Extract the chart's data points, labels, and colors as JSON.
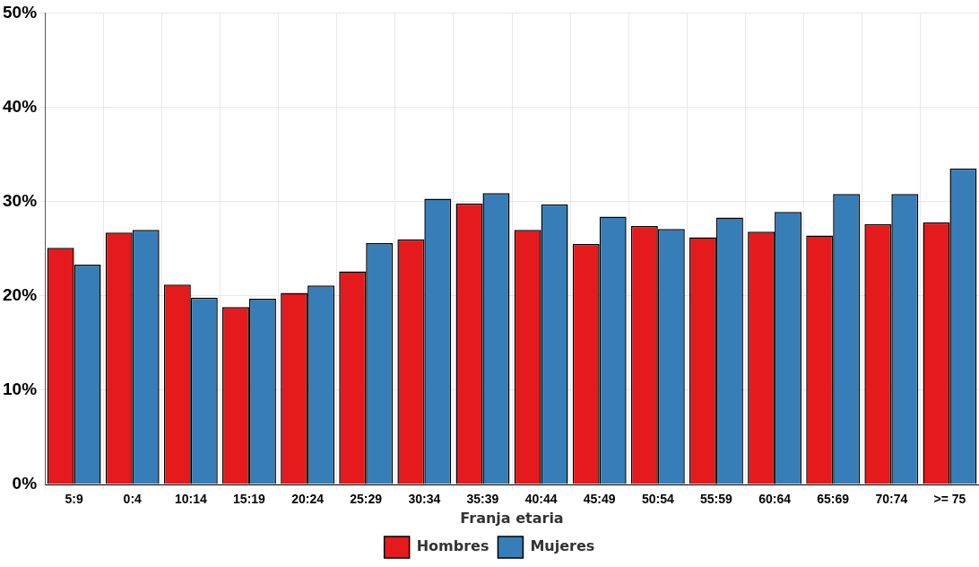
{
  "chart_data": {
    "type": "bar",
    "xlabel": "Franja etaria",
    "categories": [
      "5:9",
      "0:4",
      "10:14",
      "15:19",
      "20:24",
      "25:29",
      "30:34",
      "35:39",
      "40:44",
      "45:49",
      "50:54",
      "55:59",
      "60:64",
      "65:69",
      "70:74",
      ">= 75"
    ],
    "series": [
      {
        "name": "Hombres",
        "color": "#e41a1c",
        "values": [
          25.1,
          26.7,
          21.2,
          18.8,
          20.3,
          22.6,
          26.0,
          29.8,
          27.0,
          25.5,
          27.4,
          26.2,
          26.8,
          26.4,
          27.6,
          27.8
        ]
      },
      {
        "name": "Mujeres",
        "color": "#377eb8",
        "values": [
          23.3,
          27.0,
          19.8,
          19.7,
          21.1,
          25.6,
          30.3,
          30.9,
          29.7,
          28.4,
          27.1,
          28.3,
          28.9,
          30.8,
          30.8,
          33.5
        ]
      }
    ],
    "ylim": [
      0,
      50
    ],
    "yticks": [
      {
        "value": 0,
        "label": "0%"
      },
      {
        "value": 10,
        "label": "10%"
      },
      {
        "value": 20,
        "label": "20%"
      },
      {
        "value": 30,
        "label": "30%"
      },
      {
        "value": 40,
        "label": "40%"
      },
      {
        "value": 50,
        "label": "50%"
      }
    ],
    "grid": true,
    "legend": "bottom"
  }
}
